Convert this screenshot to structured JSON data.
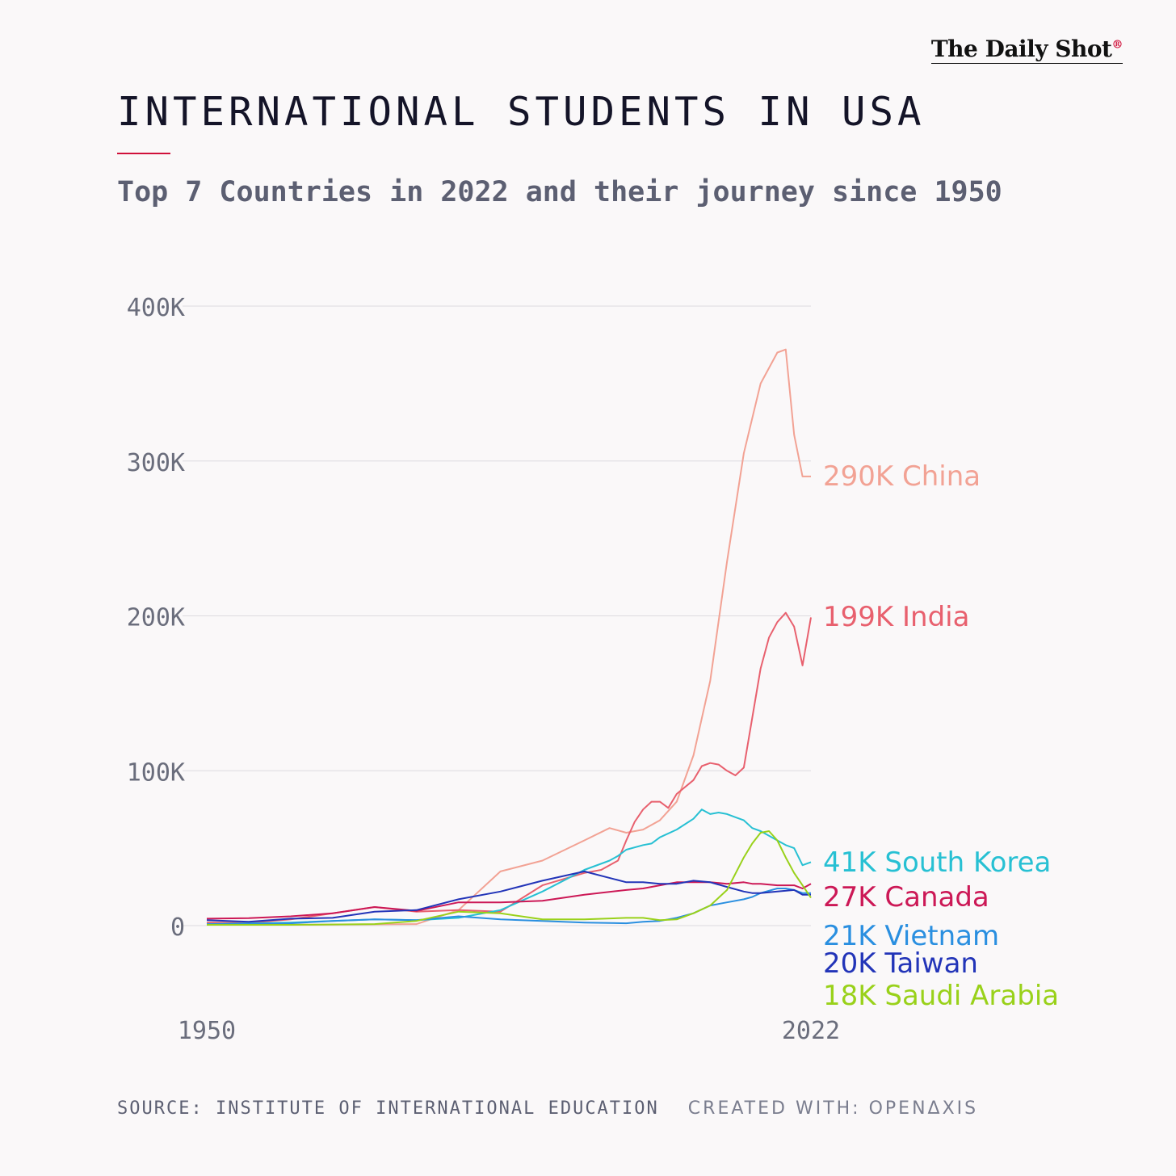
{
  "brand": {
    "name": "The Daily Shot",
    "mark": "®"
  },
  "header": {
    "title": "INTERNATIONAL STUDENTS IN USA",
    "subtitle": "Top 7 Countries in 2022 and their journey since 1950"
  },
  "footer": {
    "source": "SOURCE: INSTITUTE OF INTERNATIONAL EDUCATION",
    "created": "CREATED WITH: OPENΔXIS"
  },
  "colors": {
    "China": "#f2a294",
    "India": "#e8606e",
    "South Korea": "#27c0d3",
    "Canada": "#cc1856",
    "Vietnam": "#2a8fe0",
    "Taiwan": "#2234b8",
    "Saudi Arabia": "#99d11a"
  },
  "chart_data": {
    "type": "line",
    "title": "INTERNATIONAL STUDENTS IN USA",
    "subtitle": "Top 7 Countries in 2022 and their journey since 1950",
    "x_range": [
      1950,
      2022
    ],
    "ylim": [
      0,
      400000
    ],
    "y_ticks": [
      0,
      100000,
      200000,
      300000,
      400000
    ],
    "y_tick_labels": [
      "0",
      "100K",
      "200K",
      "300K",
      "400K"
    ],
    "x_tick_labels": [
      "1950",
      "2022"
    ],
    "grid": true,
    "series": [
      {
        "name": "China",
        "label": "290K China",
        "x": [
          1950,
          1960,
          1975,
          1980,
          1985,
          1990,
          1995,
          1998,
          2000,
          2002,
          2004,
          2006,
          2008,
          2010,
          2012,
          2014,
          2016,
          2018,
          2019,
          2020,
          2021,
          2022
        ],
        "y": [
          500,
          500,
          1000,
          10000,
          35000,
          42000,
          55000,
          63000,
          60000,
          62000,
          68000,
          80000,
          110000,
          158000,
          235000,
          305000,
          350000,
          370000,
          372000,
          317000,
          290000,
          290000
        ]
      },
      {
        "name": "India",
        "label": "199K India",
        "x": [
          1950,
          1955,
          1960,
          1965,
          1970,
          1975,
          1980,
          1985,
          1990,
          1995,
          1997,
          1999,
          2000,
          2001,
          2002,
          2003,
          2004,
          2005,
          2006,
          2008,
          2009,
          2010,
          2011,
          2012,
          2013,
          2014,
          2015,
          2016,
          2017,
          2018,
          2019,
          2020,
          2021,
          2022
        ],
        "y": [
          2000,
          1800,
          4000,
          8000,
          12000,
          9000,
          10000,
          9000,
          26000,
          34000,
          36000,
          42000,
          55000,
          67000,
          75000,
          80000,
          80000,
          76000,
          85000,
          94000,
          103000,
          105000,
          104000,
          100000,
          97000,
          102000,
          134000,
          166000,
          186000,
          196000,
          202000,
          193000,
          168000,
          199000
        ]
      },
      {
        "name": "South Korea",
        "label": "41K South Korea",
        "x": [
          1950,
          1960,
          1970,
          1975,
          1980,
          1985,
          1990,
          1995,
          1998,
          1999,
          2000,
          2002,
          2003,
          2004,
          2006,
          2008,
          2009,
          2010,
          2011,
          2012,
          2013,
          2014,
          2015,
          2016,
          2017,
          2018,
          2019,
          2020,
          2021,
          2022
        ],
        "y": [
          1000,
          2000,
          4000,
          3500,
          5000,
          10000,
          22000,
          36000,
          42000,
          45000,
          49000,
          52000,
          53000,
          57000,
          62000,
          69000,
          75000,
          72000,
          73000,
          72000,
          70000,
          68000,
          63000,
          61000,
          58000,
          55000,
          52000,
          50000,
          39000,
          41000
        ]
      },
      {
        "name": "Canada",
        "label": "27K Canada",
        "x": [
          1950,
          1955,
          1960,
          1965,
          1970,
          1975,
          1980,
          1985,
          1990,
          1995,
          2000,
          2002,
          2004,
          2006,
          2008,
          2010,
          2012,
          2014,
          2015,
          2016,
          2018,
          2020,
          2021,
          2022
        ],
        "y": [
          4500,
          4800,
          6000,
          8000,
          12000,
          9500,
          15000,
          15000,
          16000,
          20000,
          23000,
          24000,
          26000,
          28000,
          28000,
          28000,
          27000,
          28000,
          27000,
          27000,
          26000,
          26000,
          24000,
          27000
        ]
      },
      {
        "name": "Vietnam",
        "label": "21K Vietnam",
        "x": [
          1950,
          1960,
          1965,
          1970,
          1975,
          1980,
          1985,
          1990,
          1995,
          2000,
          2002,
          2004,
          2006,
          2008,
          2010,
          2012,
          2014,
          2015,
          2016,
          2018,
          2019,
          2020,
          2021,
          2022
        ],
        "y": [
          1000,
          1500,
          3000,
          4000,
          3500,
          6000,
          4000,
          3000,
          2000,
          1500,
          2500,
          3000,
          5000,
          8000,
          13000,
          15000,
          17000,
          18500,
          21000,
          24000,
          24000,
          23000,
          21000,
          21000
        ]
      },
      {
        "name": "Taiwan",
        "label": "20K Taiwan",
        "x": [
          1950,
          1955,
          1960,
          1965,
          1970,
          1975,
          1980,
          1985,
          1990,
          1995,
          2000,
          2002,
          2004,
          2006,
          2008,
          2010,
          2012,
          2014,
          2015,
          2016,
          2018,
          2020,
          2021,
          2022
        ],
        "y": [
          3500,
          2500,
          4500,
          5000,
          9000,
          10000,
          17000,
          22000,
          29000,
          35000,
          28000,
          28000,
          27000,
          27000,
          29000,
          28000,
          25000,
          22000,
          21000,
          21000,
          22000,
          23000,
          20000,
          20000
        ]
      },
      {
        "name": "Saudi Arabia",
        "label": "18K Saudi Arabia",
        "x": [
          1950,
          1960,
          1970,
          1975,
          1980,
          1985,
          1990,
          1995,
          2000,
          2002,
          2004,
          2006,
          2008,
          2010,
          2012,
          2014,
          2015,
          2016,
          2017,
          2018,
          2019,
          2020,
          2021,
          2022
        ],
        "y": [
          500,
          500,
          1000,
          3000,
          9000,
          8000,
          4000,
          4000,
          5000,
          5000,
          3500,
          4000,
          8000,
          13000,
          23000,
          44000,
          53000,
          60000,
          61000,
          55000,
          44000,
          34000,
          26000,
          18000
        ]
      }
    ]
  }
}
